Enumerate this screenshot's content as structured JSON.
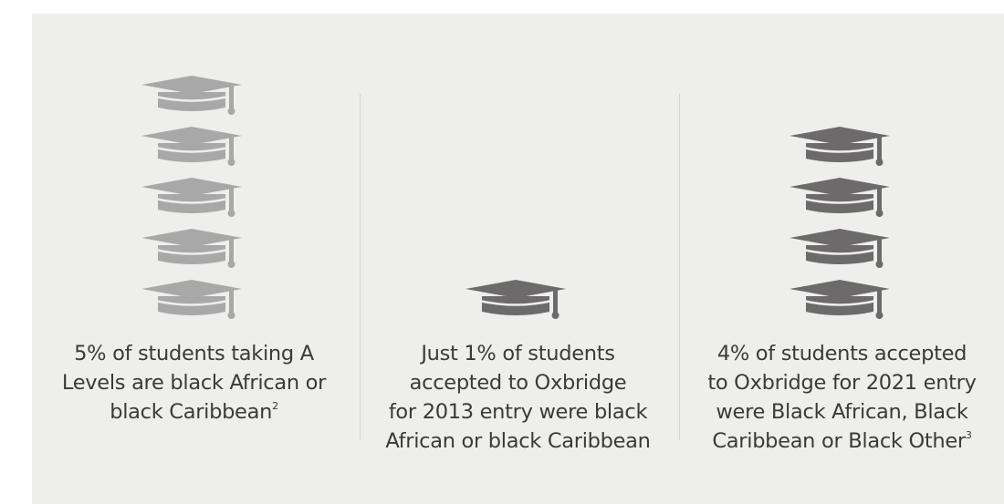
{
  "chart_data": [
    {
      "type": "pictograph",
      "icon": "graduation-cap-icon",
      "icon_count": 5,
      "value_percent": 5,
      "color": "#a8a8a8",
      "caption_lines": [
        "5% of students taking A",
        "Levels are black African or",
        "black Caribbean"
      ],
      "footnote": "2"
    },
    {
      "type": "pictograph",
      "icon": "graduation-cap-icon",
      "icon_count": 1,
      "value_percent": 1,
      "color": "#6c6a6b",
      "caption_lines": [
        "Just 1% of students",
        "accepted to Oxbridge",
        "for 2013 entry were black",
        "African or black Caribbean"
      ],
      "footnote": ""
    },
    {
      "type": "pictograph",
      "icon": "graduation-cap-icon",
      "icon_count": 4,
      "value_percent": 4,
      "color": "#6c6a6b",
      "caption_lines": [
        "4% of students accepted",
        "to Oxbridge for 2021 entry",
        "were Black African, Black",
        "Caribbean or Black Other"
      ],
      "footnote": "3"
    }
  ]
}
